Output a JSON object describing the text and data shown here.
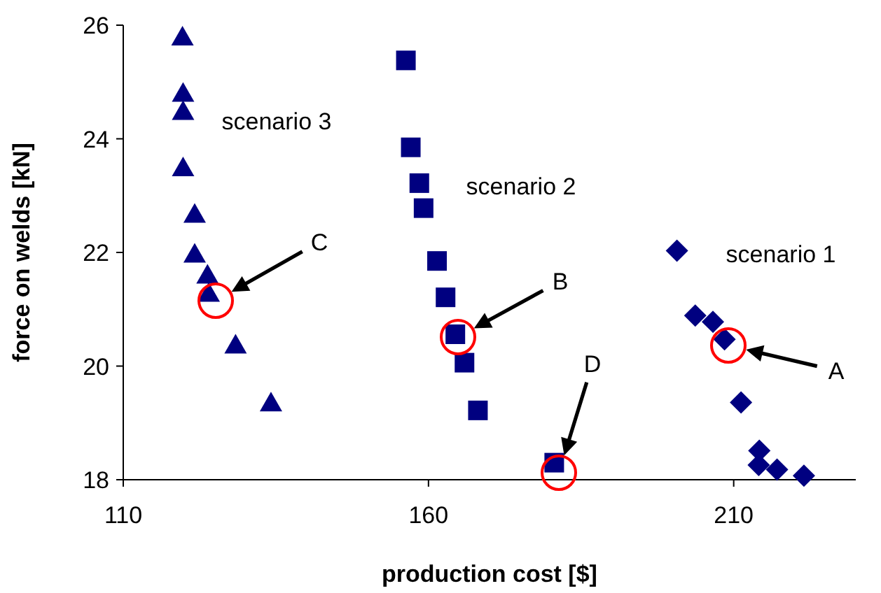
{
  "chart_data": {
    "type": "scatter",
    "xlabel": "production cost [$]",
    "ylabel": "force on welds [kN]",
    "xlim": [
      110,
      230
    ],
    "xticks": [
      110,
      160,
      210
    ],
    "ylim": [
      18,
      26
    ],
    "yticks": [
      18,
      20,
      22,
      24,
      26
    ],
    "grid": false,
    "legend": false,
    "series": [
      {
        "name": "scenario 1",
        "color": "#000080",
        "marker": "diamond",
        "x": [
          200.7,
          203.7,
          206.6,
          208.5,
          211.2,
          214.2,
          214.1,
          217.1,
          221.5
        ],
        "values": [
          22.03,
          20.89,
          20.78,
          20.47,
          19.36,
          18.51,
          18.26,
          18.18,
          18.07
        ]
      },
      {
        "name": "scenario 2",
        "color": "#000080",
        "marker": "square",
        "x": [
          156.3,
          157.1,
          158.5,
          159.2,
          161.4,
          162.8,
          164.4,
          165.9,
          168.1,
          180.6
        ],
        "values": [
          25.38,
          23.85,
          23.22,
          22.78,
          21.85,
          21.21,
          20.56,
          20.06,
          19.22,
          18.3
        ]
      },
      {
        "name": "scenario 3",
        "color": "#000080",
        "marker": "triangle",
        "x": [
          119.7,
          119.8,
          119.8,
          119.8,
          121.7,
          121.7,
          123.8,
          124.0,
          128.4,
          134.2
        ],
        "values": [
          25.79,
          24.8,
          24.48,
          23.49,
          22.67,
          21.97,
          21.6,
          21.28,
          20.37,
          19.35
        ]
      }
    ],
    "annotations": [
      "A",
      "B",
      "C",
      "D"
    ]
  }
}
